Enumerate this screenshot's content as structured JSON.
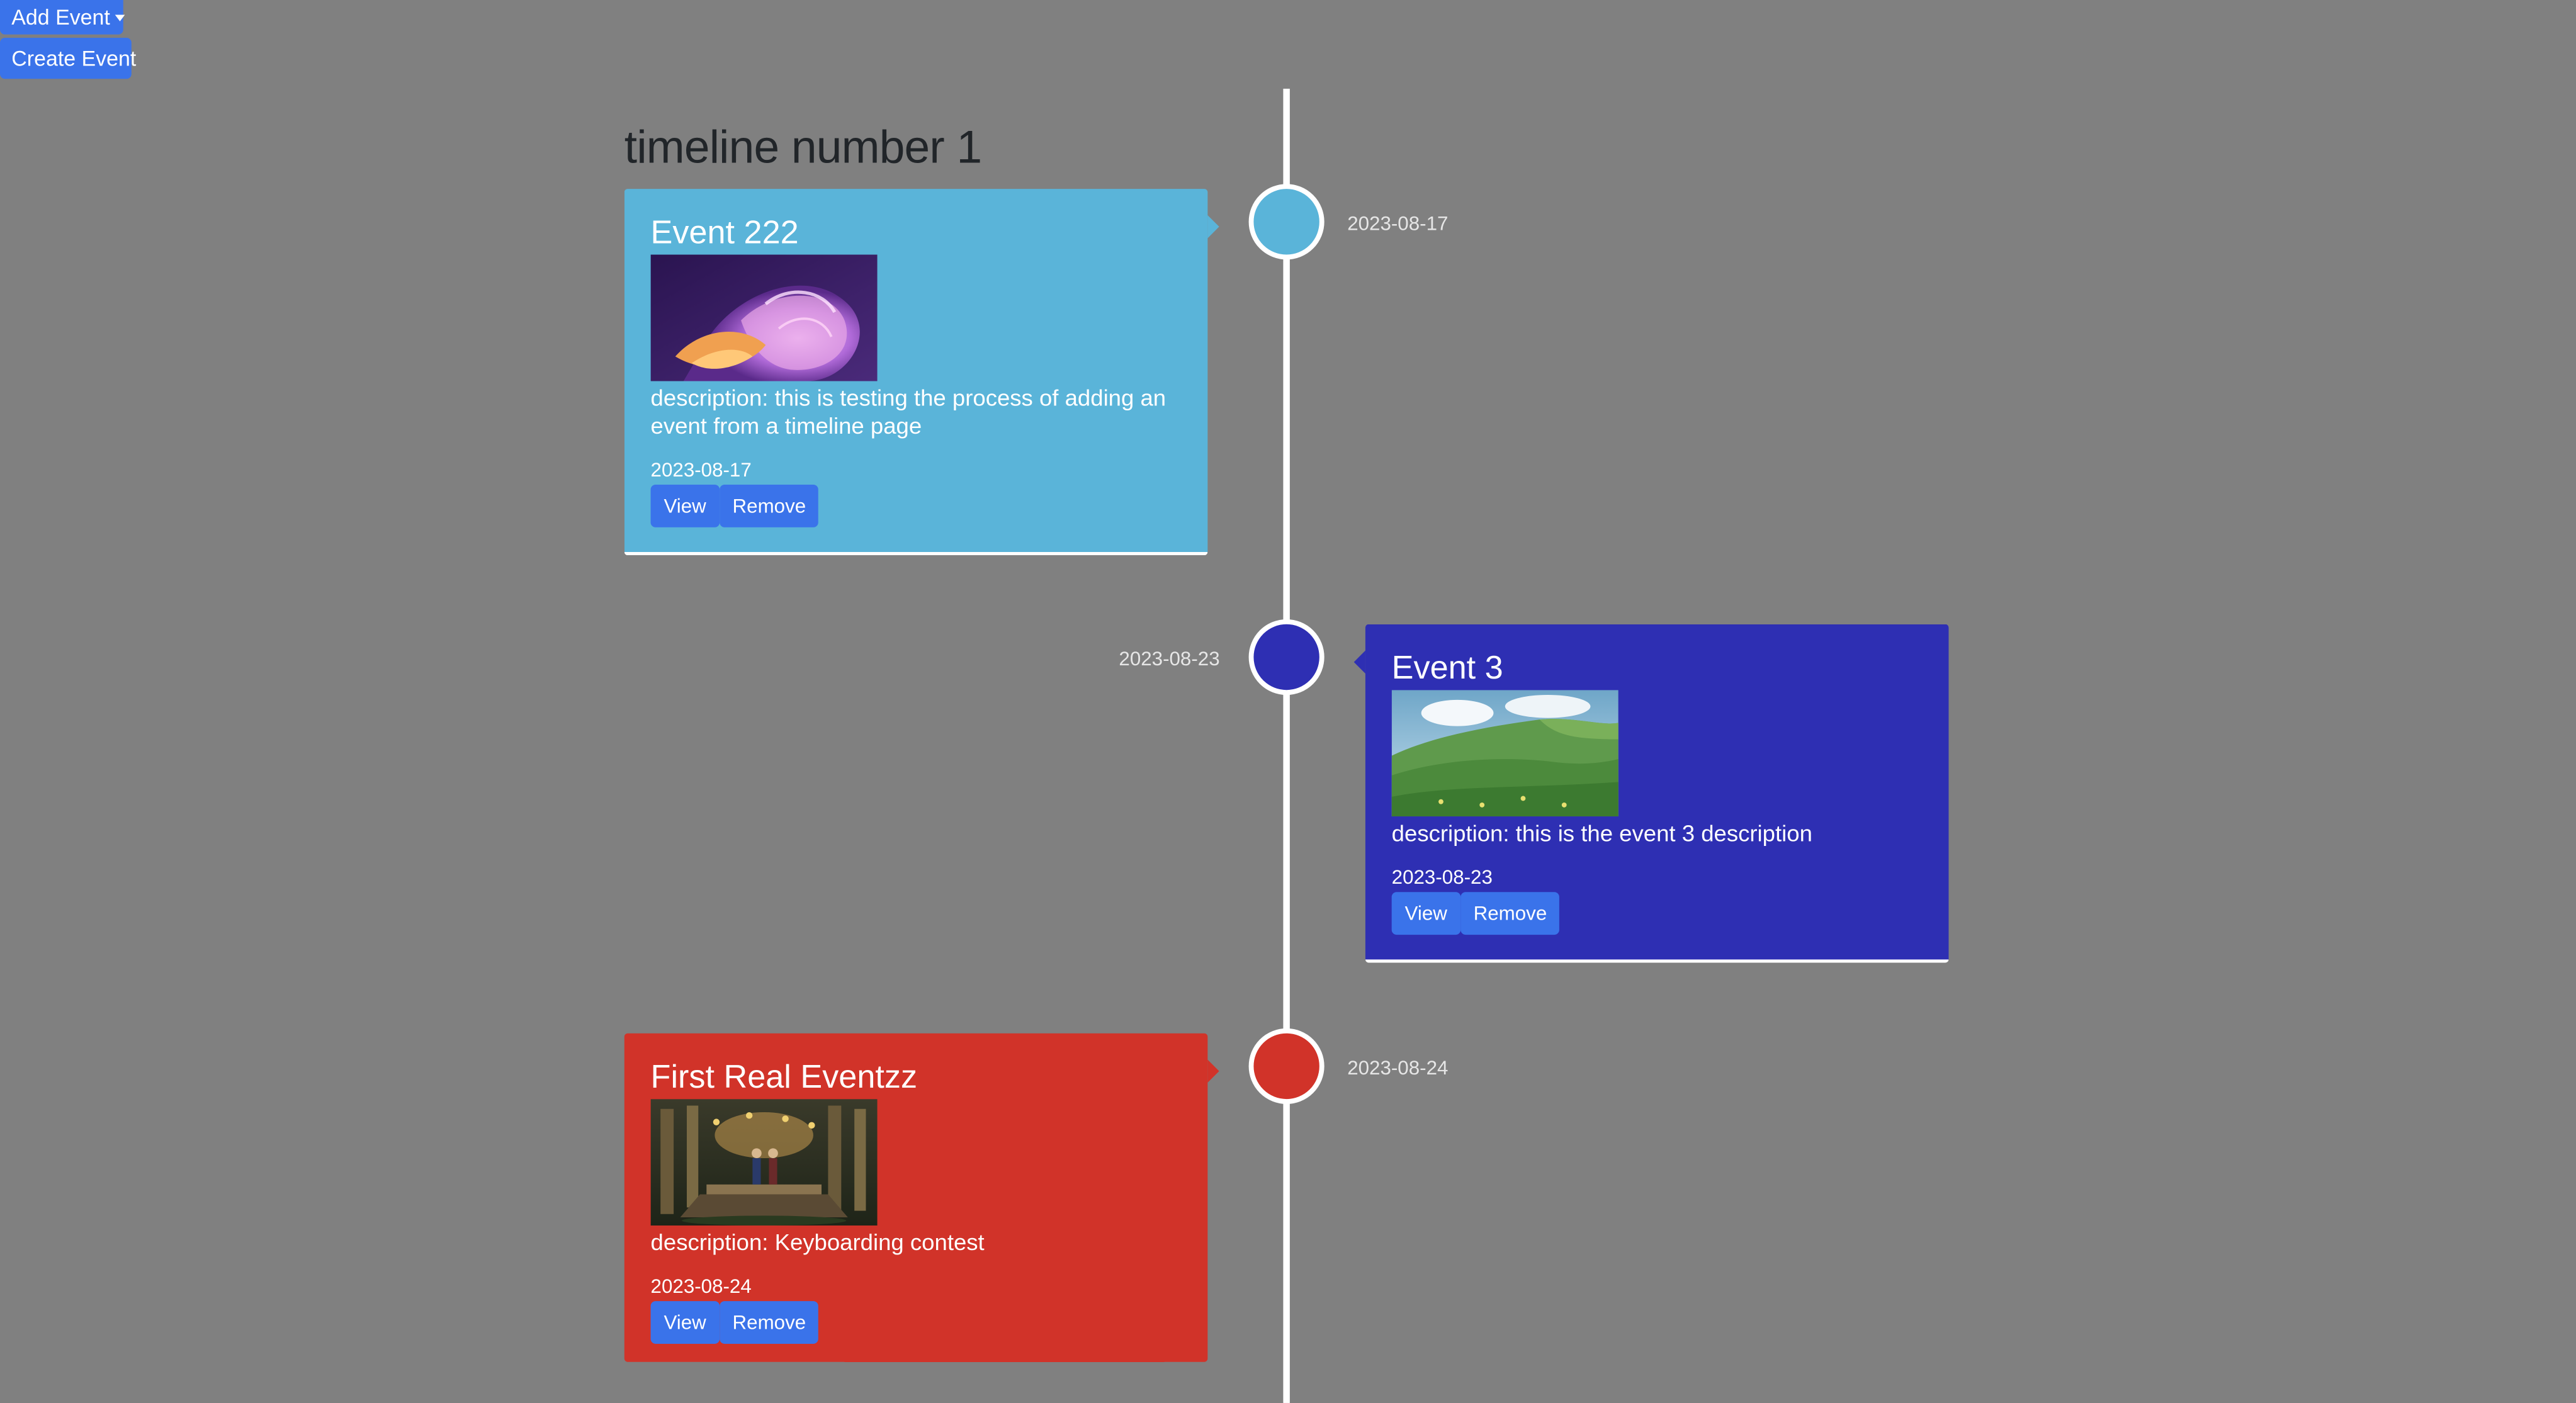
{
  "toolbar": {
    "add_event_label": "Add Event",
    "create_event_label": "Create Event"
  },
  "timeline": {
    "title": "timeline number 1",
    "events": [
      {
        "title": "Event 222",
        "description": "description: this is testing the process of adding an event from a timeline page",
        "date": "2023-08-17",
        "node_date": "2023-08-17",
        "color": "#5ab4d9",
        "image": "abstract-swirl-image",
        "side": "left",
        "view_label": "View",
        "remove_label": "Remove"
      },
      {
        "title": "Event 3",
        "description": "description: this is the event 3 description",
        "date": "2023-08-23",
        "node_date": "2023-08-23",
        "color": "#2e2fb3",
        "image": "green-hills-image",
        "side": "right",
        "view_label": "View",
        "remove_label": "Remove"
      },
      {
        "title": "First Real Eventzz",
        "description": "description: Keyboarding contest",
        "date": "2023-08-24",
        "node_date": "2023-08-24",
        "color": "#d13329",
        "image": "forest-banquet-image",
        "side": "left",
        "view_label": "View",
        "remove_label": "Remove"
      }
    ]
  },
  "colors": {
    "background": "#808080",
    "button": "#3a73ea",
    "axis": "#ffffff"
  }
}
